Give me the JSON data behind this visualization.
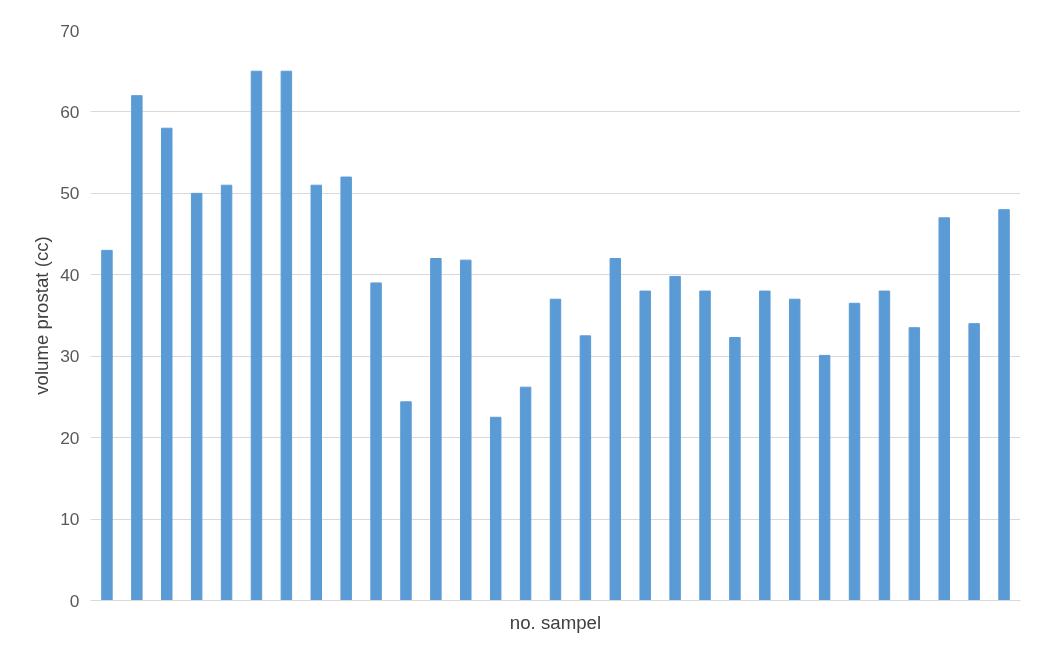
{
  "chart_data": {
    "type": "bar",
    "xlabel": "no. sampel",
    "ylabel": "volume prostat (cc)",
    "categories": [
      null,
      null,
      null,
      null,
      null,
      null,
      null,
      null,
      null,
      null,
      null,
      null,
      null,
      null,
      null,
      null,
      null,
      null,
      null,
      null,
      null,
      null,
      null,
      null,
      null,
      null,
      null,
      null,
      null,
      null,
      null
    ],
    "values": [
      43,
      62,
      58,
      50,
      51,
      65,
      65,
      51,
      52,
      39,
      24.4,
      42,
      41.8,
      22.5,
      26.2,
      37,
      32.5,
      42,
      38,
      39.8,
      38,
      32.3,
      38,
      37,
      30.1,
      36.5,
      38,
      33.5,
      47,
      34,
      48
    ],
    "color": "#5b9bd5",
    "ylim": [
      0,
      70
    ],
    "yticks": [
      0,
      10,
      20,
      30,
      40,
      50,
      60,
      70
    ],
    "grid": "y"
  }
}
